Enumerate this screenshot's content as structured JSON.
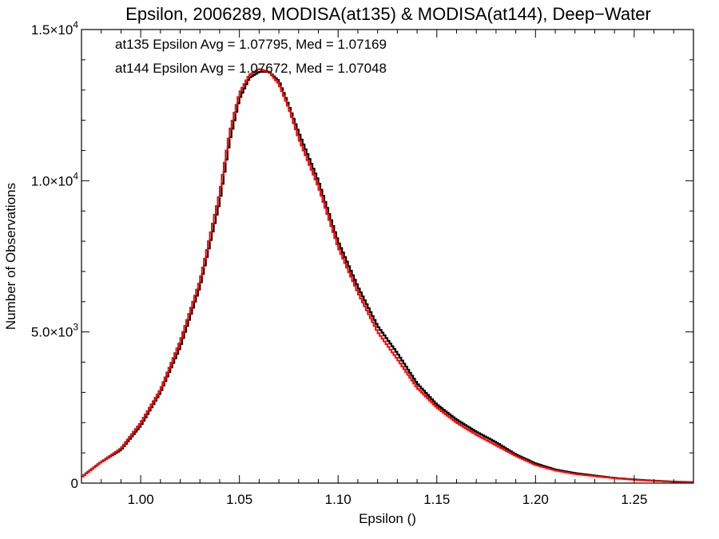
{
  "chart_data": {
    "type": "line",
    "step": true,
    "title": "Epsilon, 2006289, MODISA(at135) & MODISA(at144), Deep−Water",
    "xlabel": "Epsilon ()",
    "ylabel": "Number of Observations",
    "xlim": [
      0.97,
      1.28
    ],
    "ylim": [
      0,
      15000
    ],
    "x_ticks": [
      {
        "value": 1.0,
        "label": "1.00"
      },
      {
        "value": 1.05,
        "label": "1.05"
      },
      {
        "value": 1.1,
        "label": "1.10"
      },
      {
        "value": 1.15,
        "label": "1.15"
      },
      {
        "value": 1.2,
        "label": "1.20"
      },
      {
        "value": 1.25,
        "label": "1.25"
      }
    ],
    "y_ticks": [
      {
        "value": 0,
        "mantissa": "0",
        "exponent": ""
      },
      {
        "value": 5000,
        "mantissa": "5.0×10",
        "exponent": "3"
      },
      {
        "value": 10000,
        "mantissa": "1.0×10",
        "exponent": "4"
      },
      {
        "value": 15000,
        "mantissa": "1.5×10",
        "exponent": "4"
      }
    ],
    "legend_position": "top-left",
    "annotations": [
      {
        "text": "at135 Epsilon Avg = 1.07795, Med = 1.07169",
        "color": "#000000"
      },
      {
        "text": "at144 Epsilon Avg = 1.07672, Med = 1.07048",
        "color": "#ff0000"
      }
    ],
    "series": [
      {
        "color": "#000000",
        "x": [
          0.97,
          0.98,
          0.99,
          1.0,
          1.01,
          1.02,
          1.03,
          1.04,
          1.045,
          1.05,
          1.055,
          1.06,
          1.065,
          1.07,
          1.075,
          1.08,
          1.09,
          1.1,
          1.11,
          1.12,
          1.13,
          1.14,
          1.15,
          1.16,
          1.17,
          1.18,
          1.19,
          1.2,
          1.21,
          1.22,
          1.23,
          1.24,
          1.25,
          1.26,
          1.27,
          1.28
        ],
        "y": [
          200,
          700,
          1100,
          1900,
          3000,
          4500,
          6500,
          9300,
          11300,
          12700,
          13400,
          13600,
          13600,
          13300,
          12500,
          11600,
          10000,
          8000,
          6500,
          5200,
          4300,
          3300,
          2600,
          2100,
          1700,
          1350,
          950,
          650,
          450,
          330,
          250,
          170,
          120,
          80,
          50,
          30
        ]
      },
      {
        "color": "#ff0000",
        "x": [
          0.97,
          0.98,
          0.99,
          1.0,
          1.01,
          1.02,
          1.03,
          1.04,
          1.045,
          1.05,
          1.055,
          1.06,
          1.065,
          1.07,
          1.075,
          1.08,
          1.09,
          1.1,
          1.11,
          1.12,
          1.13,
          1.14,
          1.15,
          1.16,
          1.17,
          1.18,
          1.19,
          1.2,
          1.21,
          1.22,
          1.23,
          1.24,
          1.25,
          1.26,
          1.27,
          1.28
        ],
        "y": [
          200,
          700,
          1150,
          2000,
          3100,
          4700,
          6700,
          9600,
          11600,
          12900,
          13500,
          13700,
          13600,
          13200,
          12400,
          11400,
          9800,
          7800,
          6300,
          5000,
          4100,
          3150,
          2500,
          2000,
          1600,
          1250,
          900,
          600,
          420,
          300,
          230,
          160,
          110,
          75,
          45,
          25
        ]
      }
    ]
  }
}
